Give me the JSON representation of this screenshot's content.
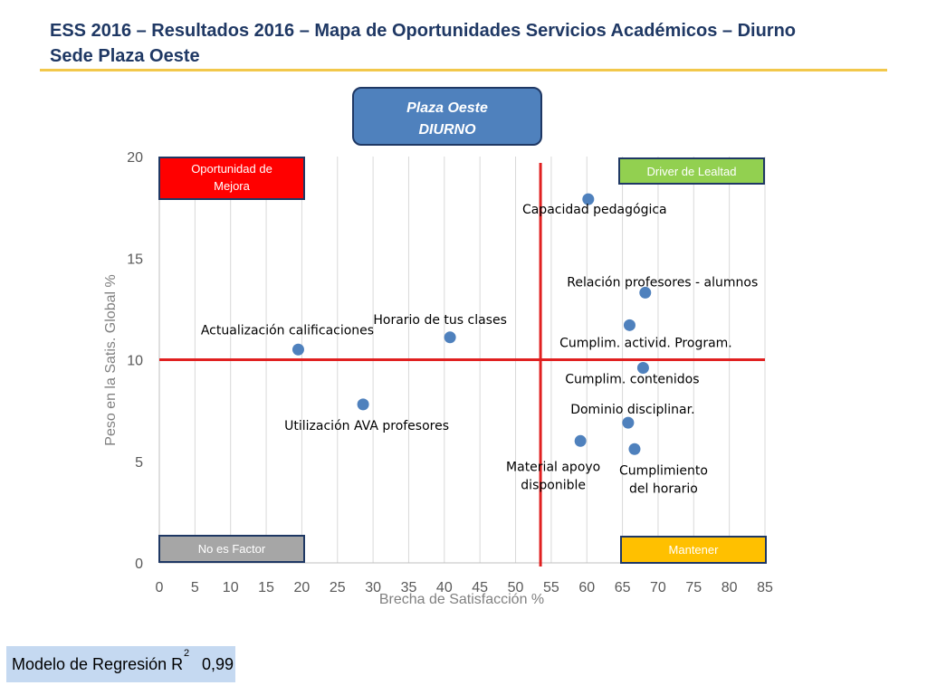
{
  "title": {
    "line1": "ESS 2016 – Resultados 2016 – Mapa de Oportunidades Servicios Académicos  – Diurno",
    "line2": "Sede Plaza Oeste",
    "color": "#1F3864",
    "rule_color": "#F2C84B"
  },
  "segment_box": {
    "line1": "Plaza Oeste",
    "line2": "DIURNO",
    "fill": "#4F81BD"
  },
  "chart_data": {
    "type": "scatter",
    "xlabel": "Brecha de Satisfacción %",
    "ylabel": "Peso en la Satis. Global %",
    "xlim": [
      0,
      85
    ],
    "ylim": [
      0,
      20
    ],
    "x_ticks": [
      0,
      5,
      10,
      15,
      20,
      25,
      30,
      35,
      40,
      45,
      50,
      55,
      60,
      65,
      70,
      75,
      80,
      85
    ],
    "y_ticks": [
      0,
      5,
      10,
      15,
      20
    ],
    "grid": "vertical",
    "point_color": "#4F81BD",
    "threshold_color": "#E02020",
    "thresholds": {
      "x": 53.5,
      "y": 10
    },
    "points": [
      {
        "label": "Capacidad pedagógica",
        "x": 60.2,
        "y": 17.9
      },
      {
        "label": "Relación profesores - alumnos",
        "x": 68.2,
        "y": 13.3
      },
      {
        "label": "Cumplim. activid. Program.",
        "x": 66.0,
        "y": 11.7
      },
      {
        "label": "Cumplim. contenidos",
        "x": 67.9,
        "y": 9.6
      },
      {
        "label": "Dominio disciplinar.",
        "x": 65.8,
        "y": 6.9
      },
      {
        "label": "Cumplimiento del horario",
        "x": 66.7,
        "y": 5.6
      },
      {
        "label": "Material apoyo disponible",
        "x": 59.1,
        "y": 6.0
      },
      {
        "label": "Horario de tus clases",
        "x": 40.8,
        "y": 11.1
      },
      {
        "label": "Actualización calificaciones",
        "x": 19.5,
        "y": 10.5
      },
      {
        "label": "Utilización AVA profesores",
        "x": 28.6,
        "y": 7.8
      }
    ],
    "quadrants": [
      {
        "label": "Oportunidad de Mejora",
        "fill": "#FF0000"
      },
      {
        "label": "Driver de Lealtad",
        "fill": "#92D050"
      },
      {
        "label": "No es Factor",
        "fill": "#A6A6A6"
      },
      {
        "label": "Mantener",
        "fill": "#FFC000"
      }
    ]
  },
  "regression": {
    "label": "Modelo de Regresión R",
    "superscript": "2",
    "value": "0,99"
  }
}
